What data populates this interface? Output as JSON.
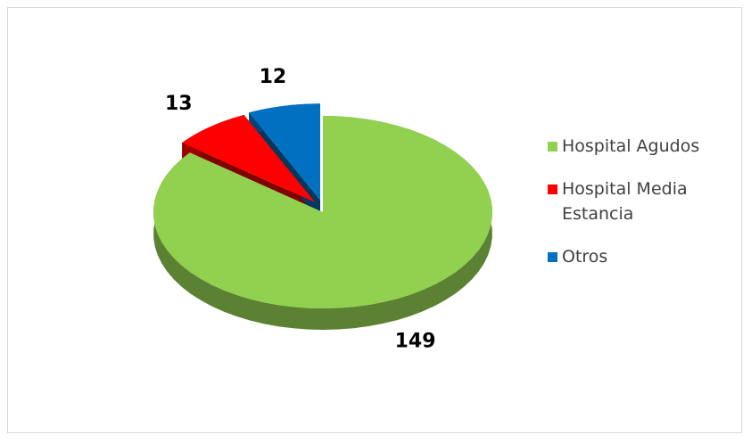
{
  "chart_data": {
    "type": "pie3d",
    "categories": [
      "Hospital Agudos",
      "Hospital Media Estancia",
      "Otros"
    ],
    "values": [
      149,
      13,
      12
    ],
    "colors": [
      "#92d050",
      "#ff0000",
      "#0070c0"
    ],
    "legend": "right"
  }
}
